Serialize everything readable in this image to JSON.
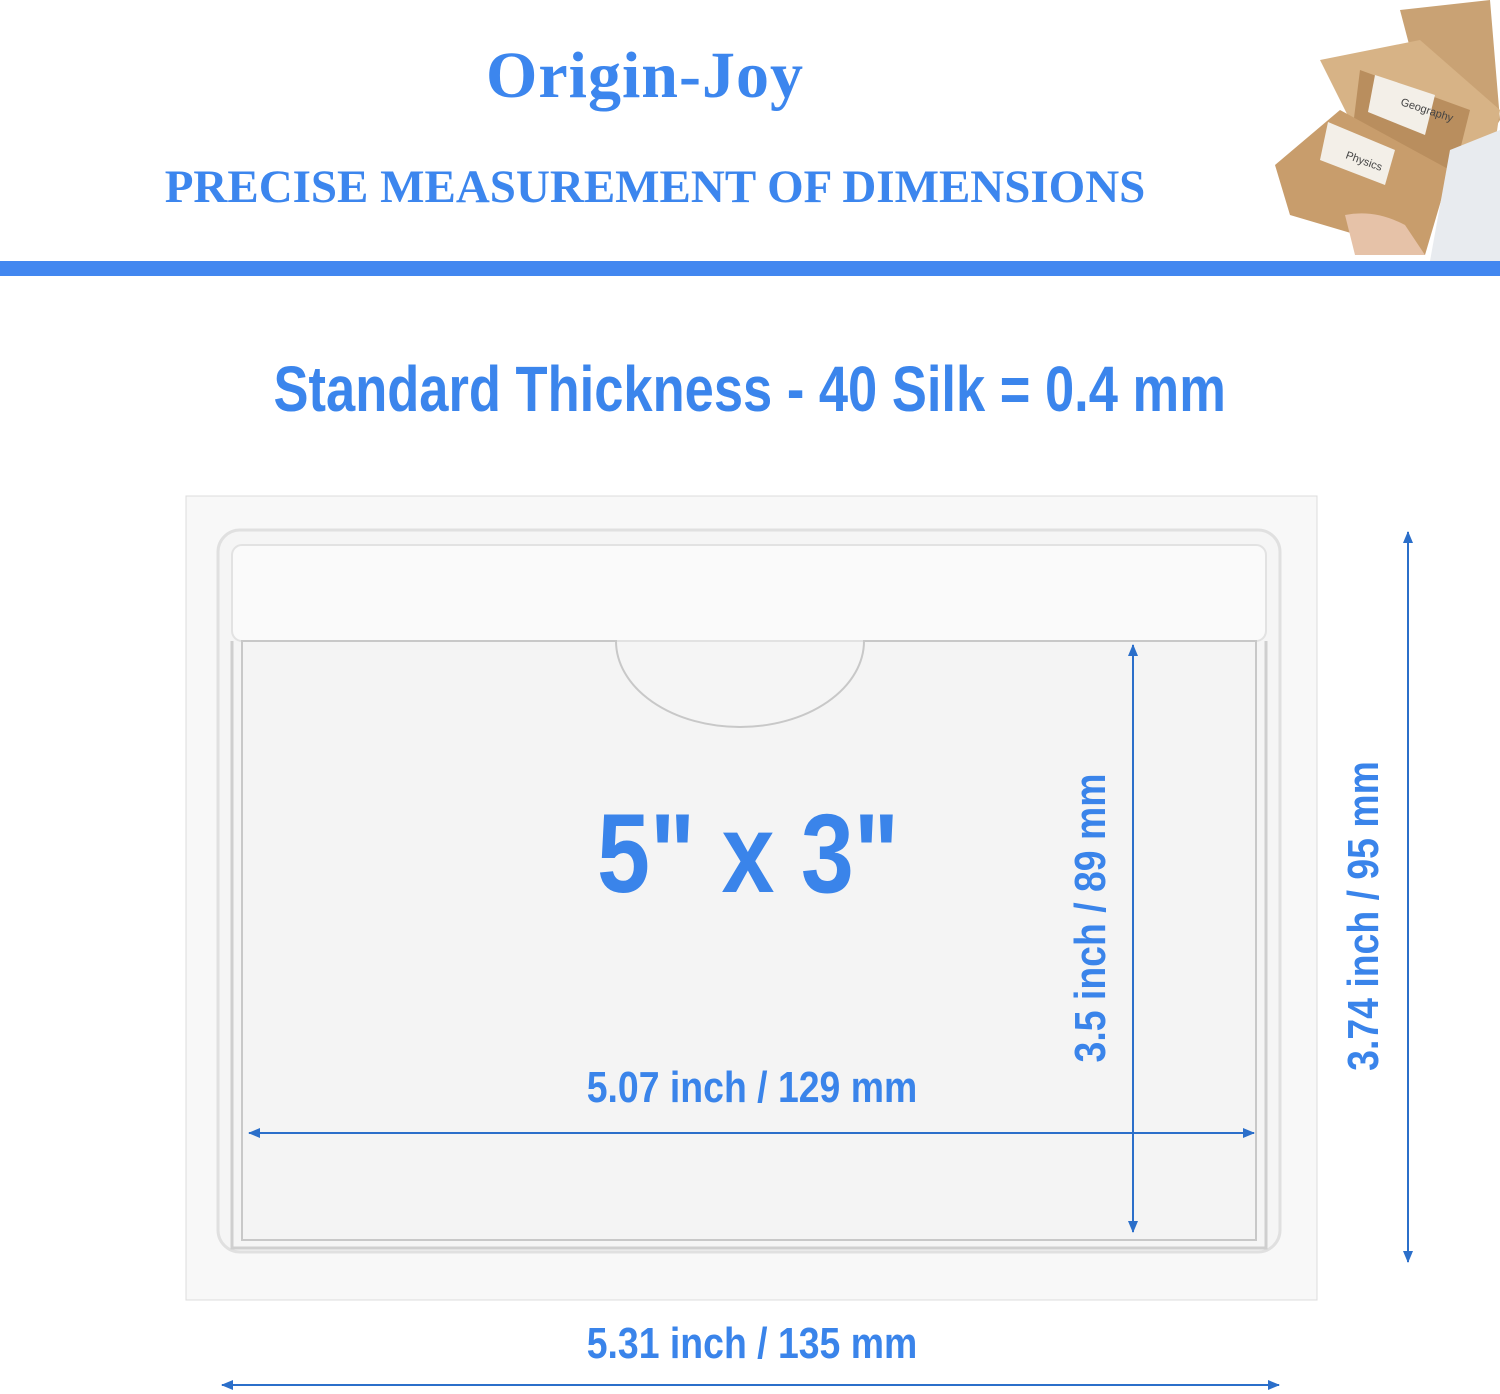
{
  "header": {
    "brand": "Origin-Joy",
    "subtitle": "PRECISE MEASUREMENT OF DIMENSIONS",
    "photo_labels": [
      "Geography",
      "Physics"
    ],
    "accent_color": "#4287f0"
  },
  "thickness_title": "Standard Thickness - 40 Silk = 0.4 mm",
  "diagram": {
    "card_size": "5\" x 3\"",
    "inner_width": "5.07 inch / 129 mm",
    "inner_height": "3.5 inch / 89 mm",
    "outer_height": "3.74 inch / 95 mm",
    "outer_width": "5.31 inch / 135 mm",
    "text_color": "#3a84ea",
    "arrow_color": "#2b6fca"
  }
}
